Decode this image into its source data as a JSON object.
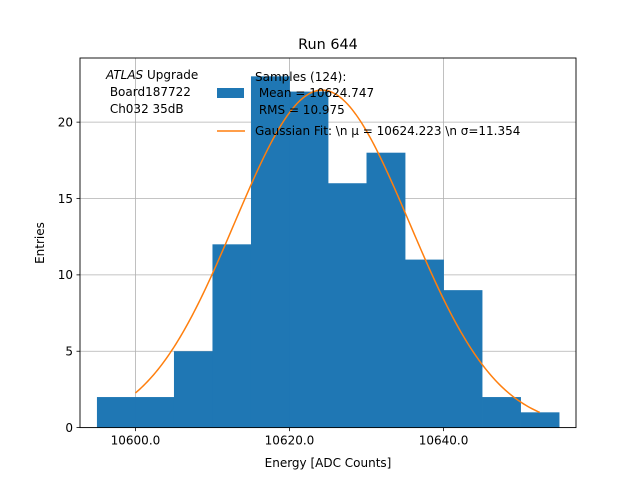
{
  "chart_data": {
    "type": "bar",
    "title": "Run 644",
    "xlabel": "Energy [ADC Counts]",
    "ylabel": "Entries",
    "xlim": [
      10592.8,
      10657.2
    ],
    "ylim": [
      0,
      24.2
    ],
    "grid": true,
    "x_ticks": [
      {
        "value": 10600.0,
        "label": "10600.0"
      },
      {
        "value": 10620.0,
        "label": "10620.0"
      },
      {
        "value": 10640.0,
        "label": "10640.0"
      }
    ],
    "y_ticks": [
      {
        "value": 0,
        "label": "0"
      },
      {
        "value": 5,
        "label": "5"
      },
      {
        "value": 10,
        "label": "10"
      },
      {
        "value": 15,
        "label": "15"
      },
      {
        "value": 20,
        "label": "20"
      }
    ],
    "bin_edges": [
      10595.0,
      10600.0,
      10605.0,
      10610.0,
      10615.0,
      10620.0,
      10625.0,
      10630.0,
      10635.0,
      10640.0,
      10645.0,
      10650.0,
      10655.0
    ],
    "counts": [
      2,
      2,
      5,
      12,
      23,
      22,
      16,
      18,
      11,
      9,
      2,
      1
    ],
    "fit": {
      "mu": 10624.223,
      "sigma": 11.354,
      "x_range": [
        10600.0,
        10652.5
      ],
      "normalization": 22.1
    },
    "annotation": {
      "line1_italic": "ATLAS",
      "line1_rest": " Upgrade",
      "line2": " Board187722",
      "line3": " Ch032 35dB"
    },
    "legend": {
      "position": "upper-right",
      "samples_header": "Samples (124):",
      "samples_mean": " Mean = 10624.747",
      "samples_rms": " RMS = 10.975",
      "fit_label": "Gaussian Fit: \\n μ = 10624.223 \\n σ=11.354"
    },
    "colors": {
      "bars": "#1f77b4",
      "fit": "#ff7f0e",
      "grid": "#b0b0b0",
      "axes": "#000000"
    }
  }
}
